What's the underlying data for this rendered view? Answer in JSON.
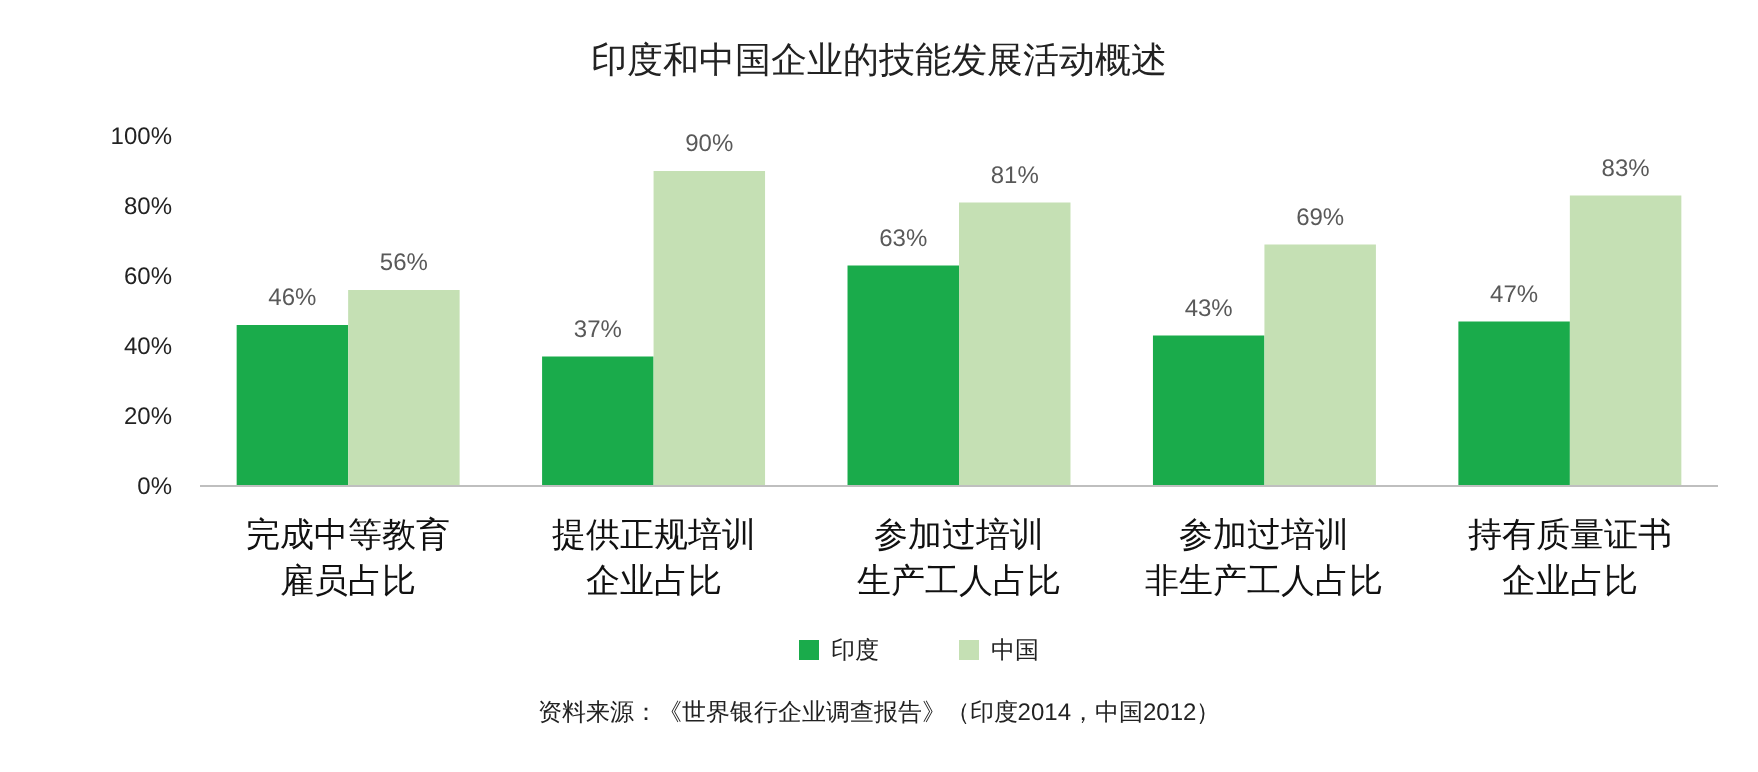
{
  "chart_data": {
    "type": "bar",
    "title": "印度和中国企业的技能发展活动概述",
    "categories": [
      "完成中等教育雇员占比",
      "提供正规培训企业占比",
      "参加过培训生产工人占比",
      "参加过培训非生产工人占比",
      "持有质量证书企业占比"
    ],
    "series": [
      {
        "name": "印度",
        "color": "#1aab4b",
        "values": [
          46,
          37,
          63,
          43,
          47
        ],
        "value_labels": [
          "46%",
          "37%",
          "63%",
          "43%",
          "47%"
        ]
      },
      {
        "name": "中国",
        "color": "#c5e0b4",
        "values": [
          56,
          90,
          81,
          69,
          83
        ],
        "value_labels": [
          "56%",
          "90%",
          "81%",
          "69%",
          "83%"
        ]
      }
    ],
    "ylim": [
      0,
      100
    ],
    "yticks": [
      {
        "value": 0,
        "label": "0%"
      },
      {
        "value": 20,
        "label": "20%"
      },
      {
        "value": 40,
        "label": "40%"
      },
      {
        "value": 60,
        "label": "60%"
      },
      {
        "value": 80,
        "label": "80%"
      },
      {
        "value": 100,
        "label": "100%"
      }
    ],
    "grid": false,
    "legend": "bottom",
    "annotations": [
      "资料来源：《世界银行企业调查报告》（印度2014，中国2012）"
    ]
  }
}
